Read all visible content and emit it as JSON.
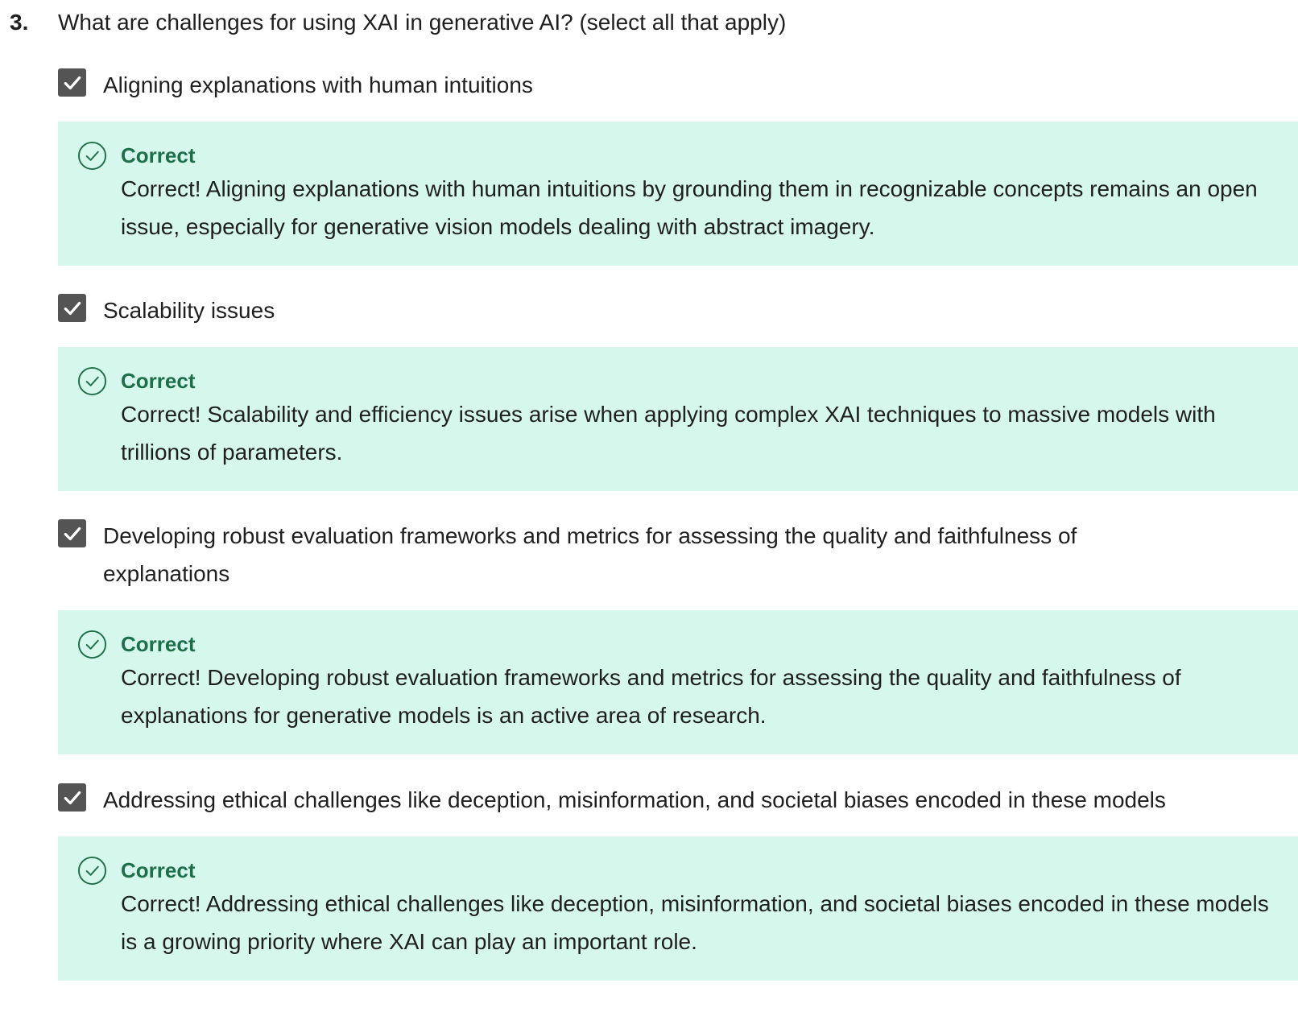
{
  "question": {
    "number": "3.",
    "text": "What are challenges for using XAI in generative AI? (select all that apply)"
  },
  "colors": {
    "feedback_bg": "#d6f7eb",
    "correct_green": "#1d6f4a",
    "checkbox_fill": "#545454"
  },
  "options": [
    {
      "label": "Aligning explanations with human intuitions",
      "checked": true,
      "feedback_title": "Correct",
      "feedback_text": "Correct! Aligning explanations with human intuitions by grounding them in recognizable concepts remains an open issue, especially for generative vision models dealing with abstract imagery."
    },
    {
      "label": "Scalability issues",
      "checked": true,
      "feedback_title": "Correct",
      "feedback_text": "Correct! Scalability and efficiency issues arise when applying complex XAI techniques to massive models with trillions of parameters."
    },
    {
      "label": "Developing robust evaluation frameworks and metrics for assessing the quality and faithfulness of explanations",
      "checked": true,
      "feedback_title": "Correct",
      "feedback_text": "Correct! Developing robust evaluation frameworks and metrics for assessing the quality and faithfulness of explanations for generative models is an active area of research."
    },
    {
      "label": "Addressing ethical challenges like deception, misinformation, and societal biases encoded in these models",
      "checked": true,
      "feedback_title": "Correct",
      "feedback_text": "Correct! Addressing ethical challenges like deception, misinformation, and societal biases encoded in these models is a growing priority where XAI can play an important role."
    }
  ]
}
